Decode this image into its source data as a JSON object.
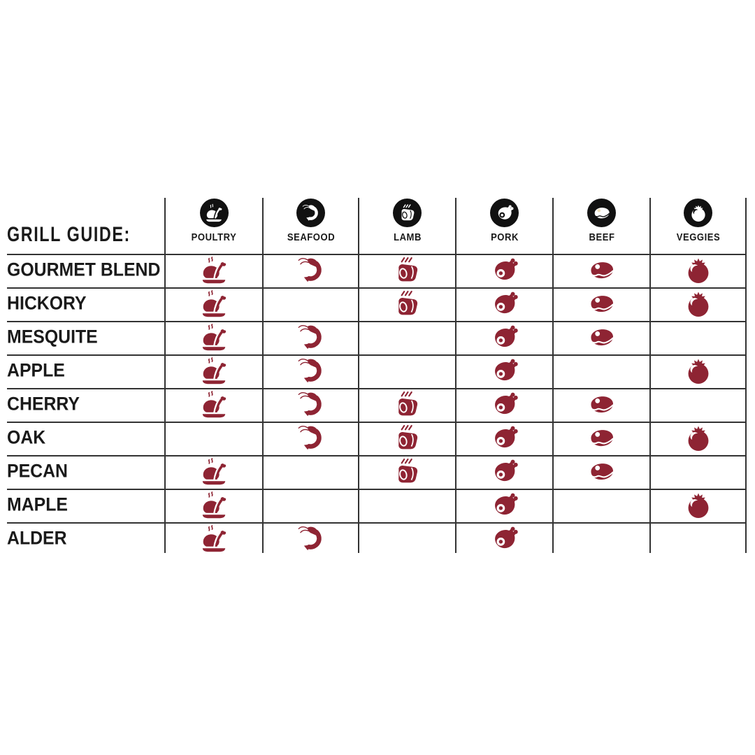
{
  "title": "GRILL GUIDE:",
  "table": {
    "columns": [
      {
        "label": "POULTRY",
        "icon": "poultry-icon"
      },
      {
        "label": "SEAFOOD",
        "icon": "seafood-icon"
      },
      {
        "label": "LAMB",
        "icon": "lamb-icon"
      },
      {
        "label": "PORK",
        "icon": "pork-icon"
      },
      {
        "label": "BEEF",
        "icon": "beef-icon"
      },
      {
        "label": "VEGGIES",
        "icon": "veggies-icon"
      }
    ],
    "rows": [
      {
        "label": "GOURMET BLEND",
        "matches": [
          true,
          true,
          true,
          true,
          true,
          true
        ]
      },
      {
        "label": "HICKORY",
        "matches": [
          true,
          false,
          true,
          true,
          true,
          true
        ]
      },
      {
        "label": "MESQUITE",
        "matches": [
          true,
          true,
          false,
          true,
          true,
          false
        ]
      },
      {
        "label": "APPLE",
        "matches": [
          true,
          true,
          false,
          true,
          false,
          true
        ]
      },
      {
        "label": "CHERRY",
        "matches": [
          true,
          true,
          true,
          true,
          true,
          false
        ]
      },
      {
        "label": "OAK",
        "matches": [
          false,
          true,
          true,
          true,
          true,
          true
        ]
      },
      {
        "label": "PECAN",
        "matches": [
          true,
          false,
          true,
          true,
          true,
          false
        ]
      },
      {
        "label": "MAPLE",
        "matches": [
          true,
          false,
          false,
          true,
          false,
          true
        ]
      },
      {
        "label": "ALDER",
        "matches": [
          true,
          true,
          false,
          true,
          false,
          false
        ]
      }
    ]
  },
  "colors": {
    "accent_red": "#8E2433",
    "icon_black": "#111111",
    "line_color": "#333333",
    "beef_fat_highlight": "#F0E0BC",
    "text": "#1A1A1A"
  },
  "chart_data": {
    "type": "table",
    "title": "GRILL GUIDE:",
    "columns": [
      "POULTRY",
      "SEAFOOD",
      "LAMB",
      "PORK",
      "BEEF",
      "VEGGIES"
    ],
    "rows": [
      "GOURMET BLEND",
      "HICKORY",
      "MESQUITE",
      "APPLE",
      "CHERRY",
      "OAK",
      "PECAN",
      "MAPLE",
      "ALDER"
    ],
    "matrix": [
      [
        1,
        1,
        1,
        1,
        1,
        1
      ],
      [
        1,
        0,
        1,
        1,
        1,
        1
      ],
      [
        1,
        1,
        0,
        1,
        1,
        0
      ],
      [
        1,
        1,
        0,
        1,
        0,
        1
      ],
      [
        1,
        1,
        1,
        1,
        1,
        0
      ],
      [
        0,
        1,
        1,
        1,
        1,
        1
      ],
      [
        1,
        0,
        1,
        1,
        1,
        0
      ],
      [
        1,
        0,
        0,
        1,
        0,
        1
      ],
      [
        1,
        1,
        0,
        1,
        0,
        0
      ]
    ],
    "cell_meaning": "1 = wood smoke flavor pairs with this food (red icon shown), 0 = blank cell",
    "legend_position": "none",
    "grid": true
  }
}
